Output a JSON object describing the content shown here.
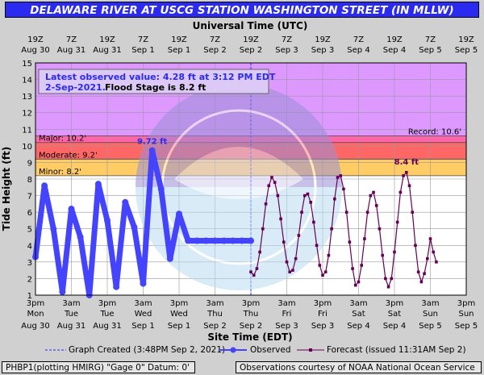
{
  "title": "DELAWARE RIVER AT USCG STATION WASHINGTON STREET (IN MLLW)",
  "top_axis": {
    "title": "Universal Time (UTC)",
    "ticks": [
      {
        "time": "19Z",
        "date": "Aug 30"
      },
      {
        "time": "7Z",
        "date": "Aug 31"
      },
      {
        "time": "19Z",
        "date": "Aug 31"
      },
      {
        "time": "7Z",
        "date": "Sep 1"
      },
      {
        "time": "19Z",
        "date": "Sep 1"
      },
      {
        "time": "7Z",
        "date": "Sep 2"
      },
      {
        "time": "19Z",
        "date": "Sep 2"
      },
      {
        "time": "7Z",
        "date": "Sep 3"
      },
      {
        "time": "19Z",
        "date": "Sep 3"
      },
      {
        "time": "7Z",
        "date": "Sep 4"
      },
      {
        "time": "19Z",
        "date": "Sep 4"
      },
      {
        "time": "7Z",
        "date": "Sep 5"
      },
      {
        "time": "19Z",
        "date": "Sep 5"
      }
    ]
  },
  "bottom_axis": {
    "title": "Site Time (EDT)",
    "ticks": [
      {
        "time": "3pm",
        "day": "Mon",
        "date": "Aug 30"
      },
      {
        "time": "3am",
        "day": "Tue",
        "date": "Aug 31"
      },
      {
        "time": "3pm",
        "day": "Tue",
        "date": "Aug 31"
      },
      {
        "time": "3am",
        "day": "Wed",
        "date": "Sep 1"
      },
      {
        "time": "3pm",
        "day": "Wed",
        "date": "Sep 1"
      },
      {
        "time": "3am",
        "day": "Thu",
        "date": "Sep 2"
      },
      {
        "time": "3pm",
        "day": "Thu",
        "date": "Sep 2"
      },
      {
        "time": "3am",
        "day": "Fri",
        "date": "Sep 3"
      },
      {
        "time": "3pm",
        "day": "Fri",
        "date": "Sep 3"
      },
      {
        "time": "3am",
        "day": "Sat",
        "date": "Sep 4"
      },
      {
        "time": "3pm",
        "day": "Sat",
        "date": "Sep 4"
      },
      {
        "time": "3am",
        "day": "Sun",
        "date": "Sep 5"
      },
      {
        "time": "3pm",
        "day": "Sun",
        "date": "Sep 5"
      }
    ]
  },
  "y_axis": {
    "title": "Tide Height (ft)",
    "ticks": [
      1,
      2,
      3,
      4,
      5,
      6,
      7,
      8,
      9,
      10,
      11,
      12,
      13,
      14,
      15
    ]
  },
  "info_box": {
    "line1": "Latest observed value: 4.28 ft at 3:12 PM EDT",
    "line2_date": "2-Sep-2021.",
    "line2_flood": "Flood Stage is 8.2 ft"
  },
  "stage_labels": {
    "major": "Major: 10.2'",
    "moderate": "Moderate: 9.2'",
    "minor": "Minor: 8.2'",
    "record": "Record: 10.6'"
  },
  "peak_labels": {
    "observed": "9.72 ft",
    "forecast": "8.4 ft"
  },
  "legend": {
    "created": "Graph Created (3:48PM Sep 2, 2021)",
    "observed": "Observed",
    "forecast": "Forecast (issued 11:31AM Sep 2)"
  },
  "footer": {
    "left": "PHBP1(plotting HMIRG) \"Gage 0\" Datum: 0'",
    "right": "Observations courtesy of NOAA National Ocean Service"
  },
  "colors": {
    "title_bg": "#2a2af0",
    "record_zone": "#dd99ff",
    "major_zone": "#ff66aa",
    "moderate_zone": "#ff6666",
    "minor_zone": "#ffcc66",
    "observed": "#4444ff",
    "forecast": "#660055"
  },
  "chart_data": {
    "type": "line",
    "x_unit": "hours after Mon Aug 30 3pm EDT",
    "xlim": [
      0,
      144
    ],
    "ylim": [
      1,
      15
    ],
    "flood_categories": {
      "minor": 8.2,
      "moderate": 9.2,
      "major": 10.2,
      "record": 10.6
    },
    "series": [
      {
        "name": "Observed",
        "x": [
          0,
          3,
          6,
          9,
          12,
          15,
          18,
          21,
          24,
          27,
          30,
          33,
          36,
          39,
          42,
          45,
          48,
          51,
          54,
          57,
          60,
          63,
          66,
          69,
          72
        ],
        "y": [
          3.3,
          7.6,
          5.0,
          1.2,
          6.2,
          4.5,
          1.0,
          7.7,
          5.5,
          1.5,
          6.6,
          5.1,
          1.7,
          9.72,
          7.4,
          3.2,
          5.9,
          4.28,
          4.28,
          4.28,
          4.28,
          4.28,
          4.28,
          4.28,
          4.28
        ]
      },
      {
        "name": "Forecast (issued 11:31AM Sep 2)",
        "x": [
          72,
          73,
          74,
          75,
          76,
          77,
          78,
          79,
          80,
          81,
          82,
          83,
          84,
          85,
          86,
          87,
          88,
          89,
          90,
          91,
          92,
          93,
          94,
          95,
          96,
          97,
          98,
          99,
          100,
          101,
          102,
          103,
          104,
          105,
          106,
          107,
          108,
          109,
          110,
          111,
          112,
          113,
          114,
          115,
          116,
          117,
          118,
          119,
          120,
          121,
          122,
          123,
          124,
          125,
          126,
          127,
          128,
          129,
          130,
          131,
          132,
          133,
          134
        ],
        "y": [
          2.4,
          2.2,
          2.6,
          3.6,
          5.0,
          6.5,
          7.6,
          8.1,
          7.8,
          7.0,
          5.6,
          4.2,
          3.0,
          2.4,
          2.5,
          3.2,
          4.6,
          6.0,
          7.0,
          7.1,
          6.6,
          5.4,
          4.0,
          2.8,
          2.2,
          2.4,
          3.4,
          5.0,
          6.8,
          8.1,
          8.2,
          7.4,
          6.0,
          4.2,
          2.6,
          1.6,
          1.8,
          2.8,
          4.4,
          6.0,
          7.0,
          7.2,
          6.4,
          5.0,
          3.4,
          2.0,
          1.5,
          2.0,
          3.6,
          5.4,
          7.2,
          8.2,
          8.4,
          7.6,
          6.0,
          4.0,
          2.4,
          1.8,
          2.3,
          3.2,
          4.4,
          3.6,
          3.0
        ]
      }
    ]
  }
}
